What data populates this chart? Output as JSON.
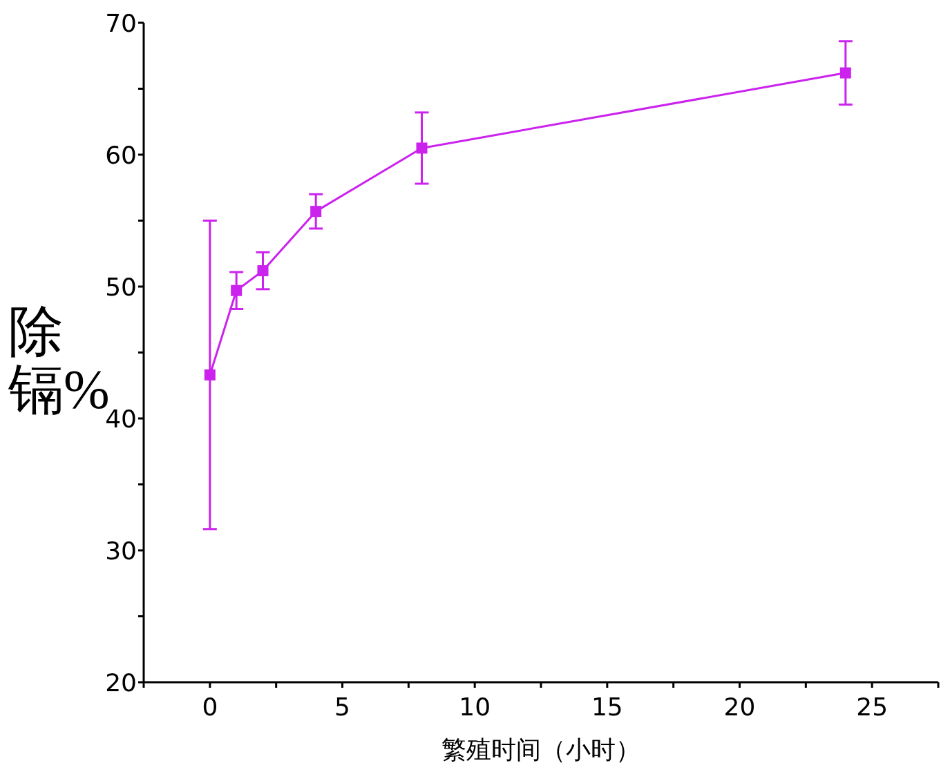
{
  "chart_data": {
    "type": "line",
    "xlabel": "繁殖时间（小时）",
    "ylabel": "除镉%",
    "x": [
      0,
      1,
      2,
      4,
      8,
      24
    ],
    "series": [
      {
        "color": "#cc22ee",
        "values": [
          43.3,
          49.7,
          51.2,
          55.7,
          60.5,
          66.2
        ],
        "errors": [
          11.7,
          1.4,
          1.4,
          1.3,
          2.7,
          2.4
        ]
      }
    ],
    "xlim": [
      -2.5,
      27.5
    ],
    "xticks": [
      {
        "value": -2.5,
        "label": null
      },
      0,
      {
        "value": 2.5,
        "label": null
      },
      5,
      {
        "value": 7.5,
        "label": null
      },
      10,
      {
        "value": 12.5,
        "label": null
      },
      15,
      {
        "value": 17.5,
        "label": null
      },
      20,
      {
        "value": 22.5,
        "label": null
      },
      25,
      {
        "value": 27.5,
        "label": null
      }
    ],
    "ylim": [
      20,
      70
    ],
    "yticks": [
      20,
      {
        "value": 25,
        "label": null
      },
      30,
      {
        "value": 35,
        "label": null
      },
      40,
      {
        "value": 45,
        "label": null
      },
      50,
      {
        "value": 55,
        "label": null
      },
      60,
      {
        "value": 65,
        "label": null
      },
      70
    ],
    "marker": "square",
    "grid": false,
    "legend": false
  }
}
